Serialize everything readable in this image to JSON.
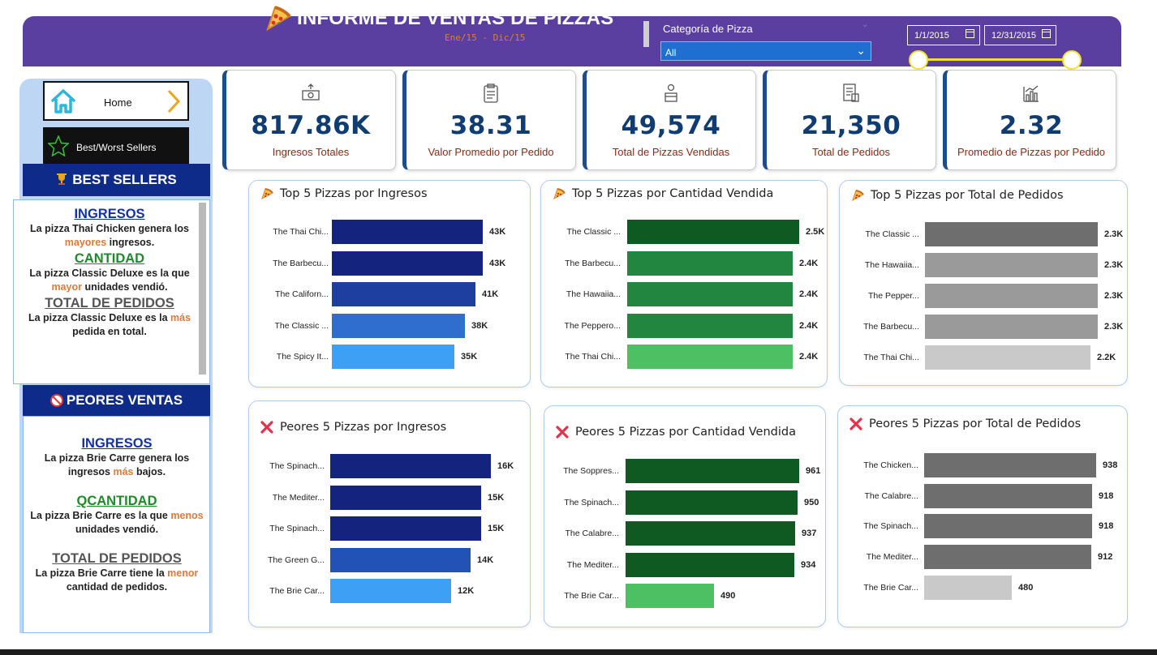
{
  "header": {
    "title": "INFORME DE VENTAS DE PIZZAS",
    "subtitle": "Ene/15 - Dic/15",
    "category_label": "Categoría de Pizza",
    "category_value": "All",
    "date_start": "1/1/2015",
    "date_end": "12/31/2015",
    "colors": {
      "bar": "#5a3fa0",
      "slider": "#f5e12d",
      "select": "#1e6fd0"
    }
  },
  "nav": {
    "home_label": "Home",
    "best_worst_label": "Best/Worst Sellers",
    "icons": [
      "home-icon",
      "chevron-right-icon",
      "star-icon"
    ]
  },
  "best_sellers": {
    "title": "BEST SELLERS",
    "icon": "trophy-icon",
    "blocks": [
      {
        "heading": "INGRESOS",
        "pre": "La pizza Thai Chicken genera los ",
        "hl": "mayores",
        "post": " ingresos."
      },
      {
        "heading": "CANTIDAD",
        "pre": "La pizza Classic Deluxe es la que ",
        "hl": "mayor",
        "post": " unidades vendió."
      },
      {
        "heading": "TOTAL DE PEDIDOS",
        "pre": "La pizza Classic Deluxe es la ",
        "hl": "más",
        "post": " pedida en total."
      }
    ]
  },
  "worst_sellers": {
    "title": "PEORES VENTAS",
    "icon": "prohibited-icon",
    "blocks": [
      {
        "heading": "INGRESOS",
        "pre": "La pizza Brie Carre genera los ingresos ",
        "hl": "más",
        "post": " bajos."
      },
      {
        "heading": "QCANTIDAD",
        "pre": "La pizza Brie Carre es la que ",
        "hl": "menos",
        "post": " unidades vendió."
      },
      {
        "heading": "TOTAL DE PEDIDOS",
        "pre": "La pizza Brie Carre tiene la ",
        "hl": "menor",
        "post": " cantidad de pedidos."
      }
    ]
  },
  "kpis": [
    {
      "value": "817.86K",
      "label": "Ingresos Totales",
      "icon": "money-icon"
    },
    {
      "value": "38.31",
      "label": "Valor Promedio por Pedido",
      "icon": "clipboard-icon"
    },
    {
      "value": "49,574",
      "label": "Total de Pizzas Vendidas",
      "icon": "delivery-icon"
    },
    {
      "value": "21,350",
      "label": "Total de Pedidos",
      "icon": "order-list-icon"
    },
    {
      "value": "2.32",
      "label": "Promedio de Pizzas por Pedido",
      "icon": "bar-chart-icon"
    }
  ],
  "chart_data": [
    {
      "type": "bar",
      "orientation": "horizontal",
      "title": "Top 5 Pizzas por Ingresos",
      "icon": "pizza-icon",
      "categories": [
        "The Thai Chi...",
        "The Barbecu...",
        "The Californ...",
        "The Classic ...",
        "The Spicy It..."
      ],
      "values": [
        43000,
        43000,
        41000,
        38000,
        35000
      ],
      "labels": [
        "43K",
        "43K",
        "41K",
        "38K",
        "35K"
      ],
      "colors": [
        "#14237e",
        "#14237e",
        "#1e3ea0",
        "#2f6ecd",
        "#3da0f5"
      ],
      "xlim": [
        0,
        43500
      ]
    },
    {
      "type": "bar",
      "orientation": "horizontal",
      "title": "Top 5 Pizzas por Cantidad Vendida",
      "icon": "pizza-icon",
      "categories": [
        "The Classic ...",
        "The Barbecu...",
        "The Hawaiia...",
        "The Peppero...",
        "The Thai Chi..."
      ],
      "values": [
        2500,
        2400,
        2400,
        2400,
        2400
      ],
      "labels": [
        "2.5K",
        "2.4K",
        "2.4K",
        "2.4K",
        "2.4K"
      ],
      "colors": [
        "#0f5a22",
        "#228540",
        "#228540",
        "#228540",
        "#4cc062"
      ],
      "xlim": [
        0,
        2500
      ]
    },
    {
      "type": "bar",
      "orientation": "horizontal",
      "title": "Top 5 Pizzas por Total de Pedidos",
      "icon": "pizza-icon",
      "categories": [
        "The Classic ...",
        "The Hawaiia...",
        "The Pepper...",
        "The Barbecu...",
        "The Thai Chi..."
      ],
      "values": [
        2300,
        2300,
        2300,
        2300,
        2200
      ],
      "labels": [
        "2.3K",
        "2.3K",
        "2.3K",
        "2.3K",
        "2.2K"
      ],
      "colors": [
        "#6e6e6e",
        "#9a9a9a",
        "#9a9a9a",
        "#9a9a9a",
        "#c9c9c9"
      ],
      "xlim": [
        0,
        2300
      ]
    },
    {
      "type": "bar",
      "orientation": "horizontal",
      "title": "Peores 5 Pizzas por Ingresos",
      "icon": "x-icon",
      "categories": [
        "The Spinach...",
        "The Mediter...",
        "The Spinach...",
        "The Green G...",
        "The Brie Car..."
      ],
      "values": [
        16000,
        15000,
        15000,
        14000,
        12000
      ],
      "labels": [
        "16K",
        "15K",
        "15K",
        "14K",
        "12K"
      ],
      "colors": [
        "#14237e",
        "#14237e",
        "#14237e",
        "#2352b6",
        "#3da0f5"
      ],
      "xlim": [
        0,
        16000
      ]
    },
    {
      "type": "bar",
      "orientation": "horizontal",
      "title": "Peores 5 Pizzas por Cantidad Vendida",
      "icon": "x-icon",
      "categories": [
        "The Soppres...",
        "The Spinach...",
        "The Calabre...",
        "The Mediter...",
        "The Brie Car..."
      ],
      "values": [
        961,
        950,
        937,
        934,
        490
      ],
      "labels": [
        "961",
        "950",
        "937",
        "934",
        "490"
      ],
      "colors": [
        "#0f5a22",
        "#0f5a22",
        "#0f5a22",
        "#0f5a22",
        "#4cc062"
      ],
      "xlim": [
        0,
        961
      ]
    },
    {
      "type": "bar",
      "orientation": "horizontal",
      "title": "Peores 5 Pizzas por Total de Pedidos",
      "icon": "x-icon",
      "categories": [
        "The Chicken...",
        "The Calabre...",
        "The Spinach...",
        "The Mediter...",
        "The Brie Car..."
      ],
      "values": [
        938,
        918,
        918,
        912,
        480
      ],
      "labels": [
        "938",
        "918",
        "918",
        "912",
        "480"
      ],
      "colors": [
        "#6e6e6e",
        "#6e6e6e",
        "#6e6e6e",
        "#6e6e6e",
        "#c9c9c9"
      ],
      "xlim": [
        0,
        938
      ]
    }
  ]
}
